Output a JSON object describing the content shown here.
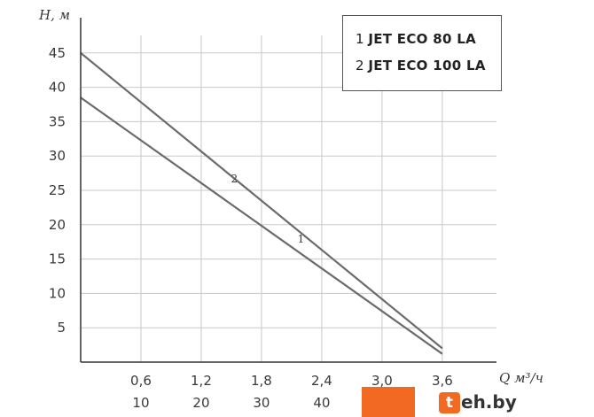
{
  "chart_data": {
    "type": "line",
    "ylabel": "H, м",
    "xlabel": "Q м³/ч",
    "x_ticks": [
      "0,6",
      "1,2",
      "1,8",
      "2,4",
      "3,0",
      "3,6"
    ],
    "x_ticks_secondary": [
      "10",
      "20",
      "30",
      "40"
    ],
    "y_ticks": [
      "5",
      "10",
      "15",
      "20",
      "25",
      "30",
      "35",
      "40",
      "45"
    ],
    "xlim": [
      0,
      4.2
    ],
    "ylim": [
      0,
      50
    ],
    "grid": true,
    "legend_position": "top-right",
    "series": [
      {
        "name": "JET ECO 80 LA",
        "label": "1",
        "x": [
          0,
          3.6
        ],
        "y": [
          38.5,
          1.2
        ],
        "color": "#6b6b6b"
      },
      {
        "name": "JET ECO 100 LA",
        "label": "2",
        "x": [
          0,
          3.6
        ],
        "y": [
          45,
          2
        ],
        "color": "#6b6b6b"
      }
    ]
  },
  "legend": [
    {
      "num": "1",
      "name": "JET ECO 80 LA"
    },
    {
      "num": "2",
      "name": "JET ECO 100 LA"
    }
  ],
  "watermark": {
    "badge": "t",
    "text": "eh.by"
  }
}
